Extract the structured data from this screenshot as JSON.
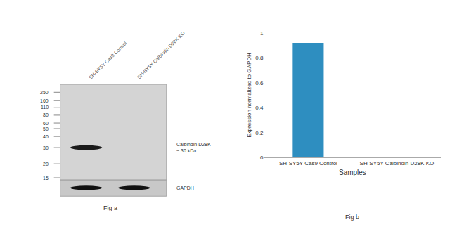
{
  "chart_data": {
    "type": "bar",
    "xlabel": "Samples",
    "ylabel": "Expression normalized to GAPDH",
    "categories": [
      "SH-SY5Y Cas9 Control",
      "SH-SY5Y Calbindin D28K KO"
    ],
    "values": [
      0.92,
      0.0
    ],
    "color": "#2e8ec0",
    "ylim": [
      0,
      1.0
    ],
    "yticks": [
      0,
      0.2,
      0.4,
      0.6,
      0.8,
      1
    ],
    "grid": false,
    "annotations": [
      "SH-SY5Y Cas9 Control",
      "SH-SY5Y Calbindin D28K KO",
      "250",
      "160",
      "110",
      "80",
      "60",
      "50",
      "40",
      "30",
      "20",
      "15",
      "Calbindin D28K\n~ 30 kDa",
      "GAPDH",
      "Fig a",
      "Fig b"
    ]
  }
}
